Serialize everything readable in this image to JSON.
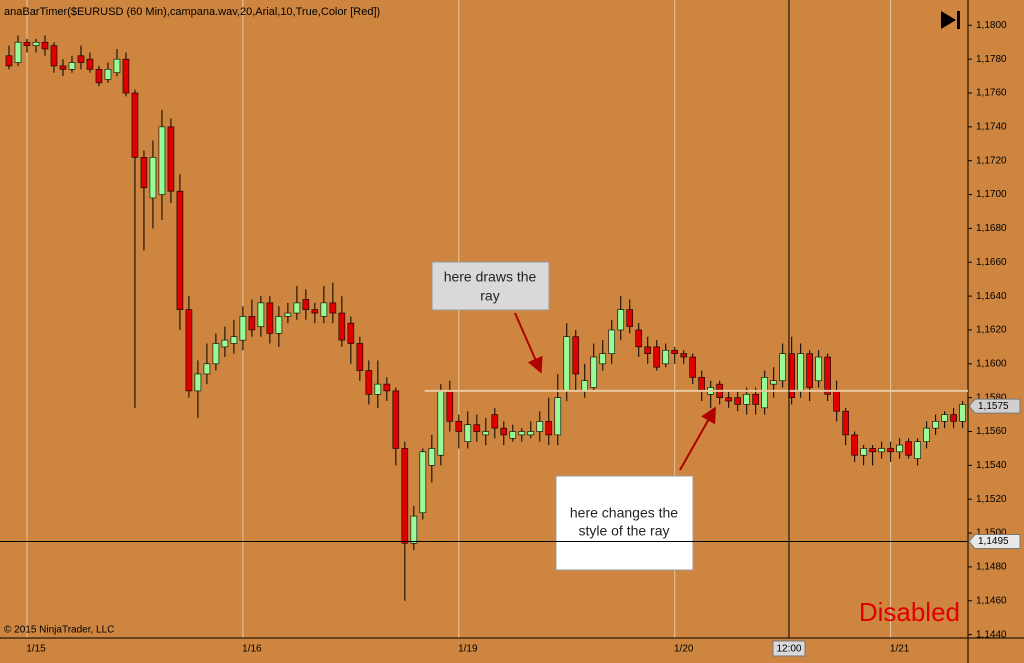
{
  "chart_data": {
    "type": "candlestick",
    "title": "anaBarTimer($EURUSD (60 Min),campana.wav,20,Arial,10,True,Color [Red])",
    "copyright": "© 2015 NinjaTrader, LLC",
    "status": "Disabled",
    "background": "#cd853f",
    "up_color": "#98fb98",
    "down_color": "#e00000",
    "ylim": [
      1.1438,
      1.1812
    ],
    "yticks": [
      {
        "value": 1.144,
        "label": "1,1440"
      },
      {
        "value": 1.146,
        "label": "1,1460"
      },
      {
        "value": 1.148,
        "label": "1,1480"
      },
      {
        "value": 1.15,
        "label": "1,1500"
      },
      {
        "value": 1.152,
        "label": "1,1520"
      },
      {
        "value": 1.154,
        "label": "1,1540"
      },
      {
        "value": 1.156,
        "label": "1,1560"
      },
      {
        "value": 1.158,
        "label": "1,1580"
      },
      {
        "value": 1.16,
        "label": "1,1600"
      },
      {
        "value": 1.162,
        "label": "1,1620"
      },
      {
        "value": 1.164,
        "label": "1,1640"
      },
      {
        "value": 1.166,
        "label": "1,1660"
      },
      {
        "value": 1.168,
        "label": "1,1680"
      },
      {
        "value": 1.17,
        "label": "1,1700"
      },
      {
        "value": 1.172,
        "label": "1,1720"
      },
      {
        "value": 1.174,
        "label": "1,1740"
      },
      {
        "value": 1.176,
        "label": "1,1760"
      },
      {
        "value": 1.178,
        "label": "1,1780"
      },
      {
        "value": 1.18,
        "label": "1,1800"
      }
    ],
    "xlim": [
      -1,
      106.6
    ],
    "xticks": [
      {
        "value": 2,
        "label": "1/15"
      },
      {
        "value": 26,
        "label": "1/16"
      },
      {
        "value": 50,
        "label": "1/19"
      },
      {
        "value": 74,
        "label": "1/20"
      },
      {
        "value": 98,
        "label": "1/21"
      }
    ],
    "candles": [
      [
        1.1782,
        1.1788,
        1.1774,
        1.1776
      ],
      [
        1.1778,
        1.1794,
        1.1776,
        1.179
      ],
      [
        1.179,
        1.1792,
        1.1784,
        1.1788
      ],
      [
        1.1788,
        1.1792,
        1.1784,
        1.179
      ],
      [
        1.179,
        1.1794,
        1.1782,
        1.1786
      ],
      [
        1.1788,
        1.179,
        1.1772,
        1.1776
      ],
      [
        1.1776,
        1.178,
        1.177,
        1.1774
      ],
      [
        1.1774,
        1.1782,
        1.1772,
        1.1778
      ],
      [
        1.1782,
        1.1788,
        1.1774,
        1.1778
      ],
      [
        1.178,
        1.1784,
        1.1772,
        1.1774
      ],
      [
        1.1774,
        1.1776,
        1.1764,
        1.1766
      ],
      [
        1.1768,
        1.1778,
        1.1766,
        1.1774
      ],
      [
        1.1772,
        1.1786,
        1.177,
        1.178
      ],
      [
        1.178,
        1.1784,
        1.1758,
        1.176
      ],
      [
        1.176,
        1.1762,
        1.1574,
        1.1722
      ],
      [
        1.1722,
        1.1726,
        1.1667,
        1.1704
      ],
      [
        1.1698,
        1.1732,
        1.168,
        1.1722
      ],
      [
        1.17,
        1.175,
        1.1685,
        1.174
      ],
      [
        1.174,
        1.1745,
        1.1695,
        1.1702
      ],
      [
        1.1702,
        1.1712,
        1.162,
        1.1632
      ],
      [
        1.1632,
        1.164,
        1.158,
        1.1584
      ],
      [
        1.1584,
        1.1602,
        1.1568,
        1.1594
      ],
      [
        1.1594,
        1.1612,
        1.1588,
        1.16
      ],
      [
        1.16,
        1.1618,
        1.1596,
        1.1612
      ],
      [
        1.161,
        1.1622,
        1.1604,
        1.1614
      ],
      [
        1.1612,
        1.1626,
        1.1606,
        1.1616
      ],
      [
        1.1614,
        1.1634,
        1.1608,
        1.1628
      ],
      [
        1.1628,
        1.1638,
        1.1616,
        1.162
      ],
      [
        1.1622,
        1.164,
        1.1616,
        1.1636
      ],
      [
        1.1636,
        1.164,
        1.1612,
        1.1618
      ],
      [
        1.1618,
        1.1634,
        1.161,
        1.1628
      ],
      [
        1.1628,
        1.1636,
        1.1624,
        1.163
      ],
      [
        1.163,
        1.1646,
        1.1626,
        1.1636
      ],
      [
        1.1638,
        1.1644,
        1.1626,
        1.1632
      ],
      [
        1.1632,
        1.1636,
        1.1624,
        1.163
      ],
      [
        1.1628,
        1.1646,
        1.1624,
        1.1636
      ],
      [
        1.1636,
        1.1648,
        1.1624,
        1.163
      ],
      [
        1.163,
        1.164,
        1.161,
        1.1614
      ],
      [
        1.1624,
        1.1628,
        1.16,
        1.1612
      ],
      [
        1.1612,
        1.1616,
        1.159,
        1.1596
      ],
      [
        1.1596,
        1.1602,
        1.1576,
        1.1582
      ],
      [
        1.1582,
        1.1602,
        1.1574,
        1.1588
      ],
      [
        1.1588,
        1.1592,
        1.1578,
        1.1584
      ],
      [
        1.1584,
        1.1586,
        1.154,
        1.155
      ],
      [
        1.155,
        1.1554,
        1.146,
        1.1494
      ],
      [
        1.1494,
        1.1516,
        1.149,
        1.151
      ],
      [
        1.1512,
        1.155,
        1.1508,
        1.1548
      ],
      [
        1.154,
        1.1558,
        1.153,
        1.155
      ],
      [
        1.1546,
        1.1588,
        1.154,
        1.1584
      ],
      [
        1.1584,
        1.159,
        1.156,
        1.1566
      ],
      [
        1.1566,
        1.157,
        1.155,
        1.156
      ],
      [
        1.1554,
        1.1572,
        1.155,
        1.1564
      ],
      [
        1.1564,
        1.157,
        1.1554,
        1.156
      ],
      [
        1.1558,
        1.1568,
        1.1552,
        1.156
      ],
      [
        1.157,
        1.1574,
        1.1556,
        1.1562
      ],
      [
        1.1562,
        1.1566,
        1.1552,
        1.1558
      ],
      [
        1.1556,
        1.1564,
        1.1554,
        1.156
      ],
      [
        1.1558,
        1.1562,
        1.1554,
        1.156
      ],
      [
        1.1558,
        1.1566,
        1.1556,
        1.156
      ],
      [
        1.156,
        1.1572,
        1.1554,
        1.1566
      ],
      [
        1.1566,
        1.158,
        1.1552,
        1.1558
      ],
      [
        1.1558,
        1.1594,
        1.1552,
        1.158
      ],
      [
        1.1584,
        1.1624,
        1.1578,
        1.1616
      ],
      [
        1.1616,
        1.162,
        1.1584,
        1.1594
      ],
      [
        1.1584,
        1.16,
        1.158,
        1.159
      ],
      [
        1.1586,
        1.1612,
        1.1584,
        1.1604
      ],
      [
        1.16,
        1.1614,
        1.1596,
        1.1606
      ],
      [
        1.1606,
        1.1626,
        1.16,
        1.162
      ],
      [
        1.162,
        1.164,
        1.1614,
        1.1632
      ],
      [
        1.1632,
        1.1638,
        1.1618,
        1.1622
      ],
      [
        1.162,
        1.1624,
        1.1604,
        1.161
      ],
      [
        1.161,
        1.1616,
        1.16,
        1.1606
      ],
      [
        1.161,
        1.1614,
        1.1596,
        1.1598
      ],
      [
        1.16,
        1.1612,
        1.1598,
        1.1608
      ],
      [
        1.1608,
        1.161,
        1.16,
        1.1606
      ],
      [
        1.1606,
        1.1608,
        1.16,
        1.1604
      ],
      [
        1.1604,
        1.1606,
        1.1588,
        1.1592
      ],
      [
        1.1592,
        1.1596,
        1.1578,
        1.1584
      ],
      [
        1.1582,
        1.159,
        1.1574,
        1.1586
      ],
      [
        1.1588,
        1.159,
        1.1576,
        1.158
      ],
      [
        1.158,
        1.1584,
        1.1574,
        1.1578
      ],
      [
        1.158,
        1.1584,
        1.1572,
        1.1576
      ],
      [
        1.1576,
        1.1586,
        1.157,
        1.1582
      ],
      [
        1.1582,
        1.1586,
        1.157,
        1.1576
      ],
      [
        1.1574,
        1.1596,
        1.157,
        1.1592
      ],
      [
        1.1588,
        1.1598,
        1.158,
        1.159
      ],
      [
        1.159,
        1.1612,
        1.1586,
        1.1606
      ],
      [
        1.1606,
        1.1616,
        1.1576,
        1.158
      ],
      [
        1.1584,
        1.1612,
        1.158,
        1.1606
      ],
      [
        1.1606,
        1.1608,
        1.1578,
        1.1586
      ],
      [
        1.159,
        1.1608,
        1.1586,
        1.1604
      ],
      [
        1.1604,
        1.1606,
        1.1578,
        1.1582
      ],
      [
        1.1584,
        1.159,
        1.1566,
        1.1572
      ],
      [
        1.1572,
        1.1574,
        1.1552,
        1.1558
      ],
      [
        1.1558,
        1.156,
        1.1542,
        1.1546
      ],
      [
        1.1546,
        1.1552,
        1.154,
        1.155
      ],
      [
        1.155,
        1.1552,
        1.154,
        1.1548
      ],
      [
        1.1548,
        1.1554,
        1.1544,
        1.155
      ],
      [
        1.155,
        1.1554,
        1.1542,
        1.1548
      ],
      [
        1.1548,
        1.1556,
        1.1544,
        1.1552
      ],
      [
        1.1554,
        1.1556,
        1.1544,
        1.1546
      ],
      [
        1.1544,
        1.1556,
        1.154,
        1.1554
      ],
      [
        1.1554,
        1.1566,
        1.155,
        1.1562
      ],
      [
        1.1562,
        1.157,
        1.1558,
        1.1566
      ],
      [
        1.1566,
        1.1572,
        1.1562,
        1.157
      ],
      [
        1.157,
        1.1574,
        1.1562,
        1.1566
      ],
      [
        1.1566,
        1.1578,
        1.1562,
        1.1576
      ]
    ],
    "ray": {
      "price": 1.1584,
      "start_bar": 46.2,
      "color": "#e8c8a0"
    },
    "crosshair": {
      "bar": 86.7,
      "time_label": "12:00",
      "price": 1.1495,
      "price_label": "1,1495"
    },
    "last_price": {
      "value": 1.1575,
      "label": "1,1575"
    },
    "annotations": [
      {
        "lines": [
          "here draws the",
          "ray"
        ]
      },
      {
        "lines": [
          "here changes the",
          "style of the ray"
        ]
      }
    ]
  }
}
